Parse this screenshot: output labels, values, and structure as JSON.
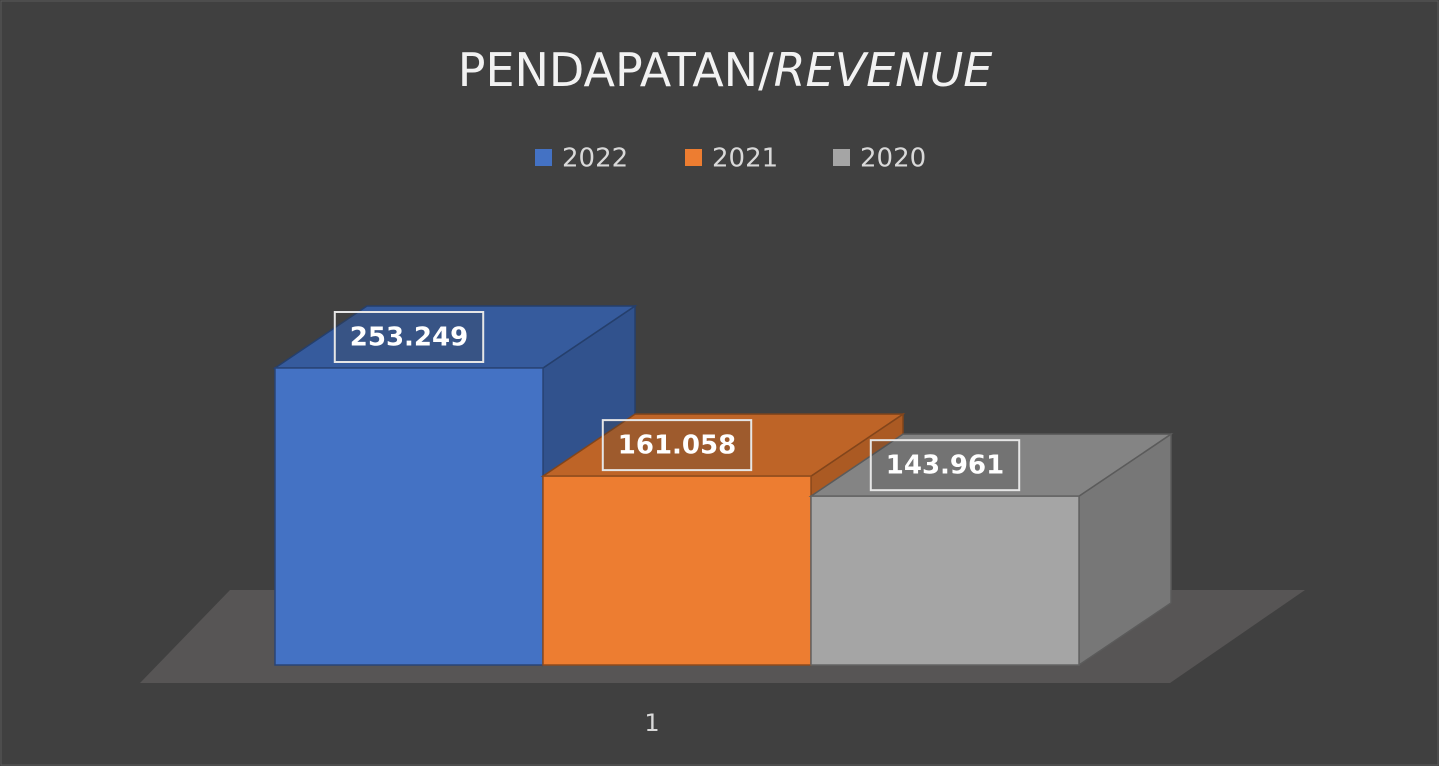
{
  "chart_data": {
    "type": "bar3d",
    "title": "PENDAPATAN/REVENUE",
    "categories": [
      "1"
    ],
    "series": [
      {
        "name": "2022",
        "color": "#4472c4",
        "values": [
          253.249
        ]
      },
      {
        "name": "2021",
        "color": "#ed7d31",
        "values": [
          161.058
        ]
      },
      {
        "name": "2020",
        "color": "#a5a5a5",
        "values": [
          143.961
        ]
      }
    ],
    "legend": "top"
  }
}
